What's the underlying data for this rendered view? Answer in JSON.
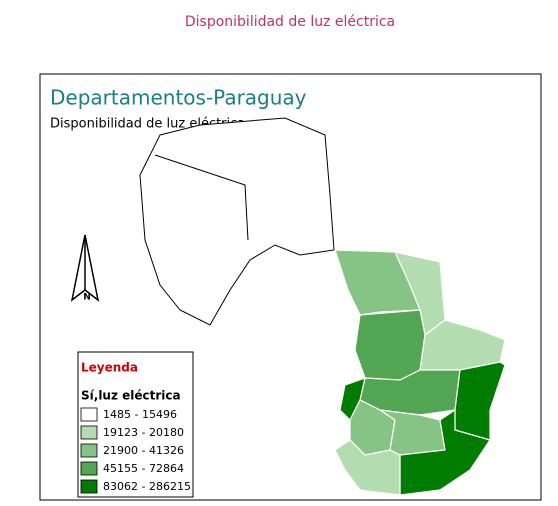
{
  "page_title": "Disponibilidad de luz eléctrica",
  "map": {
    "title": "Departamentos-Paraguay",
    "subtitle": "Disponibilidad de luz eléctrica",
    "north": "N"
  },
  "legend": {
    "title": "Leyenda",
    "field": "Sí,luz eléctrica",
    "items": [
      {
        "label": "1485 - 15496",
        "color": "#ffffff"
      },
      {
        "label": "19123 - 20180",
        "color": "#b3dcb0"
      },
      {
        "label": "21900 - 41326",
        "color": "#86c486"
      },
      {
        "label": "45155 - 72864",
        "color": "#52a552"
      },
      {
        "label": "83062 - 286215",
        "color": "#007d00"
      }
    ]
  }
}
